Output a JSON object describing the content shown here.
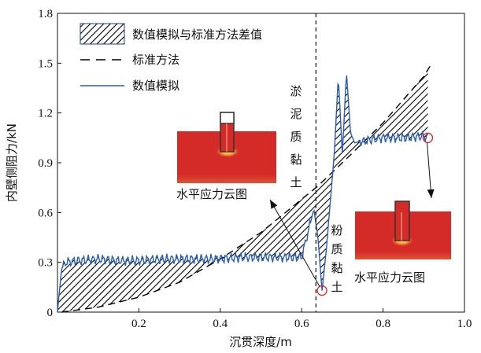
{
  "chart_data": {
    "type": "area",
    "xlabel": "沉贯深度/m",
    "ylabel": "内壁侧阻力/kN",
    "xlim": [
      0,
      1.0
    ],
    "ylim": [
      0,
      1.8
    ],
    "x_ticks": [
      "0.2",
      "0.4",
      "0.6",
      "0.8",
      "1.0"
    ],
    "y_ticks": [
      "0",
      "0.3",
      "0.6",
      "0.9",
      "1.2",
      "1.5",
      "1.8"
    ],
    "legend": {
      "position": "top-left",
      "items": [
        {
          "label": "数值模拟与标准方法差值",
          "style": "hatch"
        },
        {
          "label": "标准方法",
          "style": "dashed-black"
        },
        {
          "label": "数值模拟",
          "style": "blue-line"
        }
      ]
    },
    "series": [
      {
        "name": "标准方法",
        "color": "#000000",
        "x": [
          0.01,
          0.1,
          0.2,
          0.3,
          0.4,
          0.5,
          0.55,
          0.6,
          0.64,
          0.7,
          0.8,
          0.9,
          0.92
        ],
        "y": [
          0.0,
          0.03,
          0.09,
          0.18,
          0.32,
          0.48,
          0.58,
          0.68,
          0.76,
          0.9,
          1.14,
          1.42,
          1.5
        ]
      },
      {
        "name": "数值模拟",
        "color": "#2a5db0",
        "x": [
          0.0,
          0.01,
          0.02,
          0.05,
          0.1,
          0.15,
          0.2,
          0.25,
          0.3,
          0.35,
          0.4,
          0.45,
          0.5,
          0.55,
          0.6,
          0.63,
          0.64,
          0.65,
          0.66,
          0.68,
          0.69,
          0.7,
          0.71,
          0.72,
          0.73,
          0.75,
          0.8,
          0.85,
          0.9,
          0.91
        ],
        "y": [
          0.0,
          0.26,
          0.3,
          0.31,
          0.32,
          0.31,
          0.31,
          0.32,
          0.32,
          0.32,
          0.32,
          0.33,
          0.33,
          0.33,
          0.33,
          0.62,
          0.45,
          0.13,
          0.36,
          0.95,
          1.42,
          0.95,
          1.45,
          1.08,
          1.02,
          1.03,
          1.05,
          1.05,
          1.06,
          1.05
        ]
      }
    ],
    "annotations": {
      "soil_layer_1": "淤泥质黏土",
      "soil_layer_2": "粉质黏土",
      "boundary_x": 0.635,
      "markers": [
        {
          "x": 0.65,
          "y": 0.13
        },
        {
          "x": 0.91,
          "y": 1.05
        }
      ]
    },
    "inset_caption_left": "水平应力云图",
    "inset_caption_right": "水平应力云图",
    "colors": {
      "hatch": "#000000",
      "blue": "#2a5db0",
      "marker": "#e02020",
      "inset_red": "#d42a28"
    }
  }
}
